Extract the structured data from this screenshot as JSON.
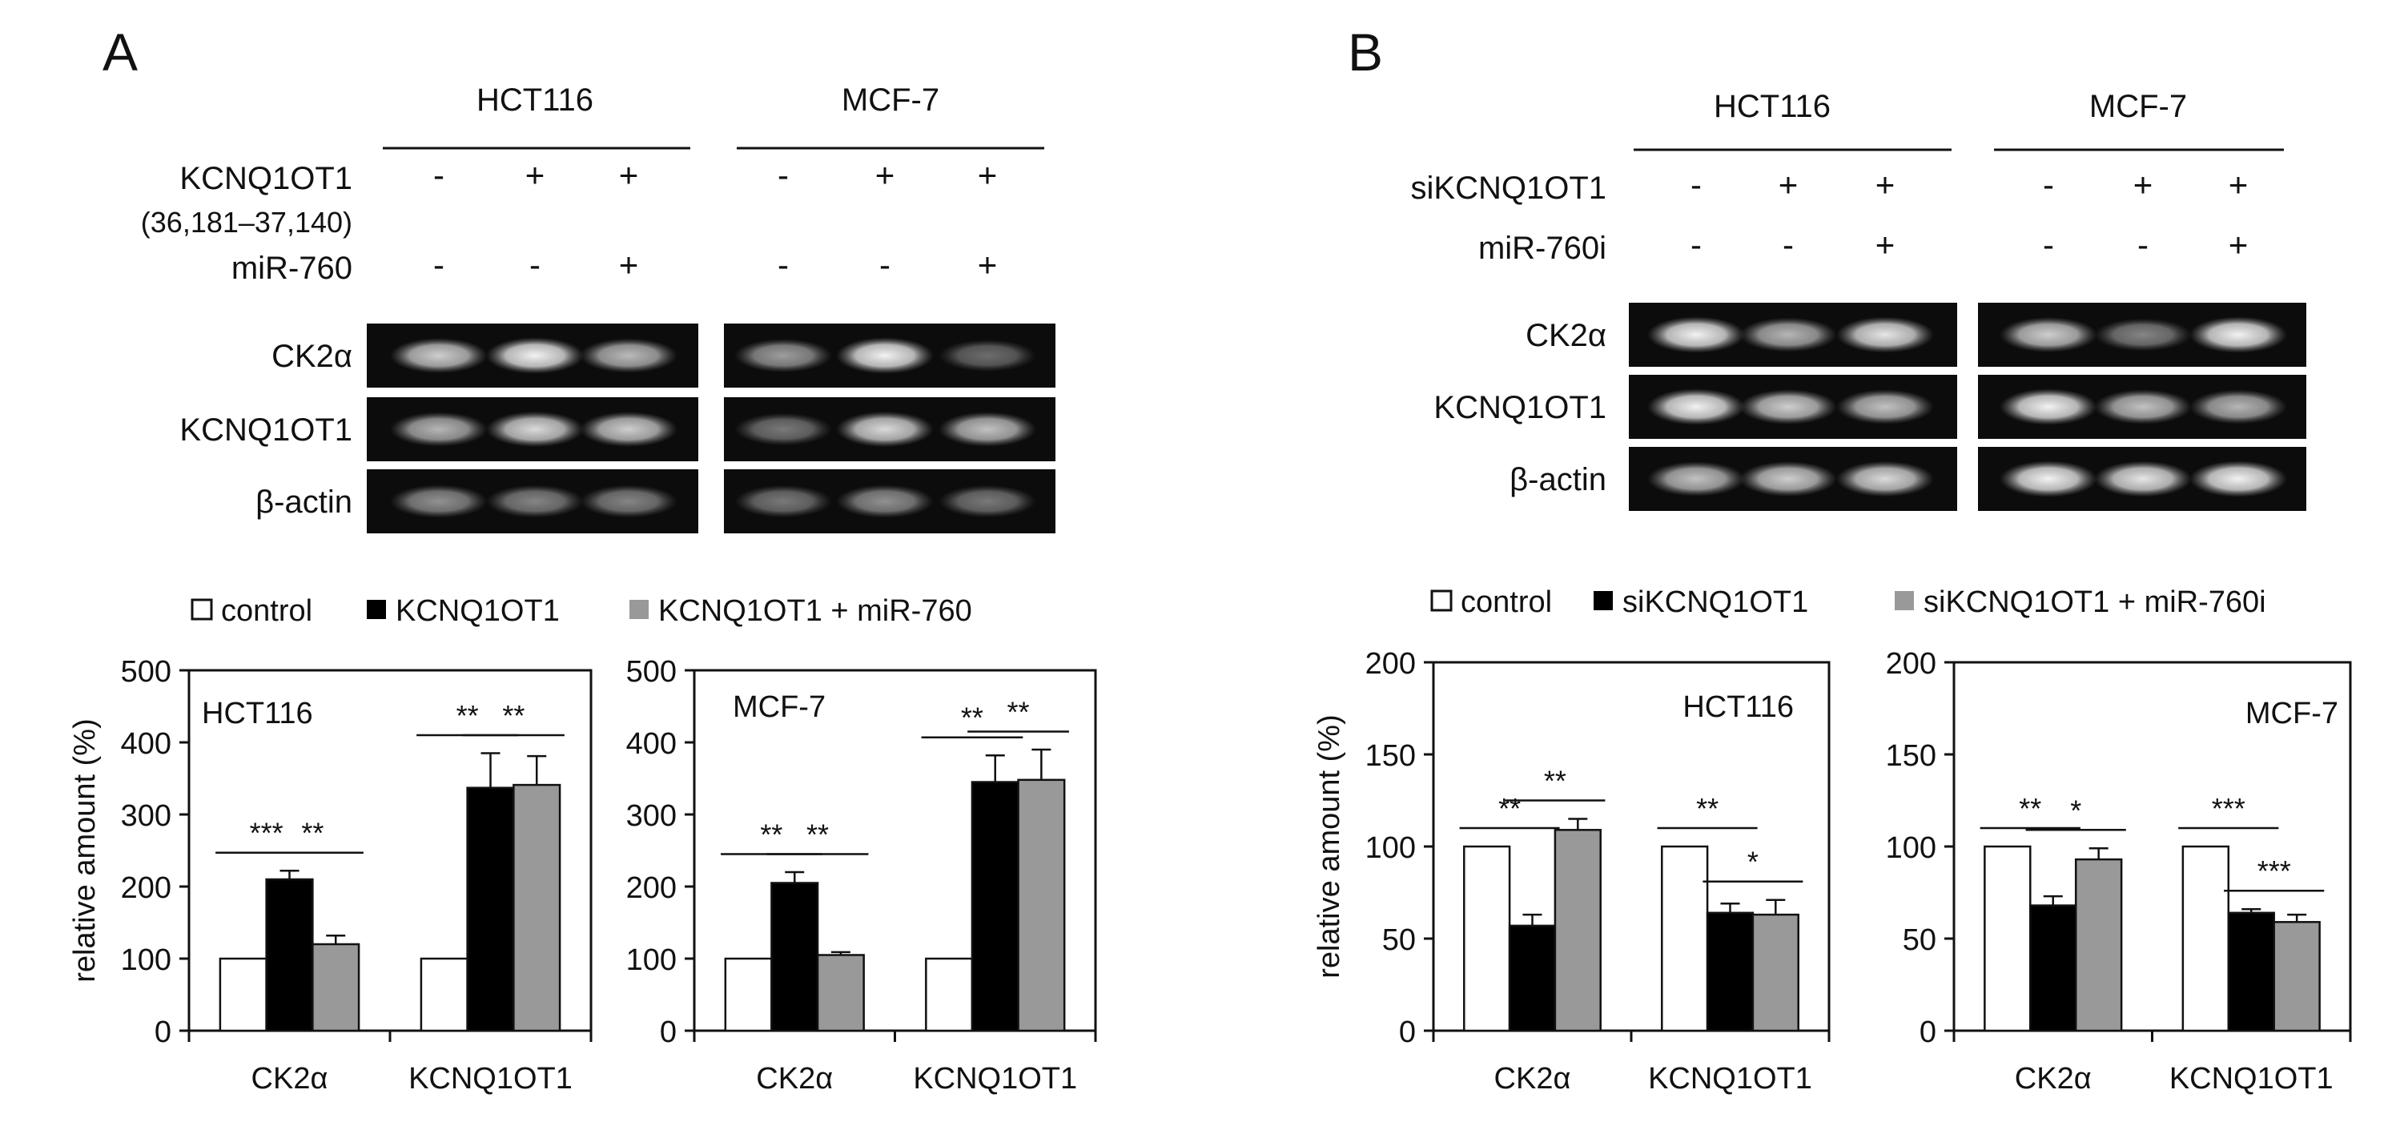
{
  "panels": [
    {
      "letter": "A",
      "cell_lines": [
        "HCT116",
        "MCF-7"
      ],
      "condition_rows": [
        {
          "label": "KCNQ1OT1",
          "sublabel": "(36,181–37,140)",
          "signs": [
            "-",
            "+",
            "+",
            "-",
            "+",
            "+"
          ]
        },
        {
          "label": "miR-760",
          "sublabel": "",
          "signs": [
            "-",
            "-",
            "+",
            "-",
            "-",
            "+"
          ]
        }
      ],
      "gel_rows": [
        {
          "label": "CK2α",
          "intensities": [
            0.8,
            0.95,
            0.72,
            0.6,
            0.95,
            0.4
          ]
        },
        {
          "label": "KCNQ1OT1",
          "intensities": [
            0.7,
            0.85,
            0.8,
            0.45,
            0.85,
            0.75
          ]
        },
        {
          "label": "β-actin",
          "intensities": [
            0.55,
            0.5,
            0.5,
            0.45,
            0.55,
            0.45
          ]
        }
      ],
      "legend": [
        "control",
        "KCNQ1OT1",
        "KCNQ1OT1 + miR-760"
      ]
    },
    {
      "letter": "B",
      "cell_lines": [
        "HCT116",
        "MCF-7"
      ],
      "condition_rows": [
        {
          "label": "siKCNQ1OT1",
          "sublabel": "",
          "signs": [
            "-",
            "+",
            "+",
            "-",
            "+",
            "+"
          ]
        },
        {
          "label": "miR-760i",
          "sublabel": "",
          "signs": [
            "-",
            "-",
            "+",
            "-",
            "-",
            "+"
          ]
        }
      ],
      "gel_rows": [
        {
          "label": "CK2α",
          "intensities": [
            0.95,
            0.7,
            0.9,
            0.8,
            0.5,
            0.95
          ]
        },
        {
          "label": "KCNQ1OT1",
          "intensities": [
            0.95,
            0.8,
            0.75,
            0.95,
            0.75,
            0.7
          ]
        },
        {
          "label": "β-actin",
          "intensities": [
            0.75,
            0.8,
            0.85,
            0.95,
            0.9,
            0.95
          ]
        }
      ],
      "legend": [
        "control",
        "siKCNQ1OT1",
        "siKCNQ1OT1 + miR-760i"
      ]
    }
  ],
  "colors": {
    "control": "#ffffff",
    "treatment": "#000000",
    "combined": "#999999",
    "gel_bg": "#0c0c0c",
    "band": "#ffffff"
  },
  "chart_data": [
    {
      "type": "bar",
      "panel": "A",
      "title": "HCT116",
      "ylabel": "relative amount (%)",
      "ylim": [
        0,
        500
      ],
      "yticks": [
        0,
        100,
        200,
        300,
        400,
        500
      ],
      "categories": [
        "CK2α",
        "KCNQ1OT1"
      ],
      "series": [
        {
          "name": "control",
          "values": [
            100,
            100
          ],
          "errors": [
            0,
            0
          ]
        },
        {
          "name": "KCNQ1OT1",
          "values": [
            210,
            337
          ],
          "errors": [
            12,
            48
          ]
        },
        {
          "name": "KCNQ1OT1 + miR-760",
          "values": [
            120,
            341
          ],
          "errors": [
            12,
            40
          ]
        }
      ],
      "annotations": [
        {
          "category": 0,
          "from": 0,
          "to": 1,
          "label": "***"
        },
        {
          "category": 0,
          "from": 1,
          "to": 2,
          "label": "**"
        },
        {
          "category": 1,
          "from": 0,
          "to": 1,
          "label": "**"
        },
        {
          "category": 1,
          "from": 1,
          "to": 2,
          "label": "**"
        }
      ]
    },
    {
      "type": "bar",
      "panel": "A",
      "title": "MCF-7",
      "ylabel": "",
      "ylim": [
        0,
        500
      ],
      "yticks": [
        0,
        100,
        200,
        300,
        400,
        500
      ],
      "categories": [
        "CK2α",
        "KCNQ1OT1"
      ],
      "series": [
        {
          "name": "control",
          "values": [
            100,
            100
          ],
          "errors": [
            0,
            0
          ]
        },
        {
          "name": "KCNQ1OT1",
          "values": [
            205,
            345
          ],
          "errors": [
            15,
            37
          ]
        },
        {
          "name": "KCNQ1OT1 + miR-760",
          "values": [
            105,
            348
          ],
          "errors": [
            4,
            42
          ]
        }
      ],
      "annotations": [
        {
          "category": 0,
          "from": 0,
          "to": 1,
          "label": "**"
        },
        {
          "category": 0,
          "from": 1,
          "to": 2,
          "label": "**"
        },
        {
          "category": 1,
          "from": 0,
          "to": 1,
          "label": "**"
        },
        {
          "category": 1,
          "from": 1,
          "to": 2,
          "label": "**"
        }
      ]
    },
    {
      "type": "bar",
      "panel": "B",
      "title": "HCT116",
      "ylabel": "relative amount (%)",
      "ylim": [
        0,
        200
      ],
      "yticks": [
        0,
        50,
        100,
        150,
        200
      ],
      "categories": [
        "CK2α",
        "KCNQ1OT1"
      ],
      "series": [
        {
          "name": "control",
          "values": [
            100,
            100
          ],
          "errors": [
            0,
            0
          ]
        },
        {
          "name": "siKCNQ1OT1",
          "values": [
            57,
            64
          ],
          "errors": [
            6,
            5
          ]
        },
        {
          "name": "siKCNQ1OT1 + miR-760i",
          "values": [
            109,
            63
          ],
          "errors": [
            6,
            8
          ]
        }
      ],
      "annotations": [
        {
          "category": 0,
          "from": 0,
          "to": 1,
          "label": "**"
        },
        {
          "category": 0,
          "from": 1,
          "to": 2,
          "label": "**"
        },
        {
          "category": 1,
          "from": 0,
          "to": 1,
          "label": "**"
        },
        {
          "category": 1,
          "from": 1,
          "to": 2,
          "label": "*"
        }
      ]
    },
    {
      "type": "bar",
      "panel": "B",
      "title": "MCF-7",
      "ylabel": "",
      "ylim": [
        0,
        200
      ],
      "yticks": [
        0,
        50,
        100,
        150,
        200
      ],
      "categories": [
        "CK2α",
        "KCNQ1OT1"
      ],
      "series": [
        {
          "name": "control",
          "values": [
            100,
            100
          ],
          "errors": [
            0,
            0
          ]
        },
        {
          "name": "siKCNQ1OT1",
          "values": [
            68,
            64
          ],
          "errors": [
            5,
            2
          ]
        },
        {
          "name": "siKCNQ1OT1 + miR-760i",
          "values": [
            93,
            59
          ],
          "errors": [
            6,
            4
          ]
        }
      ],
      "annotations": [
        {
          "category": 0,
          "from": 0,
          "to": 1,
          "label": "**"
        },
        {
          "category": 0,
          "from": 1,
          "to": 2,
          "label": "*"
        },
        {
          "category": 1,
          "from": 0,
          "to": 1,
          "label": "***"
        },
        {
          "category": 1,
          "from": 1,
          "to": 2,
          "label": "***"
        }
      ]
    }
  ]
}
